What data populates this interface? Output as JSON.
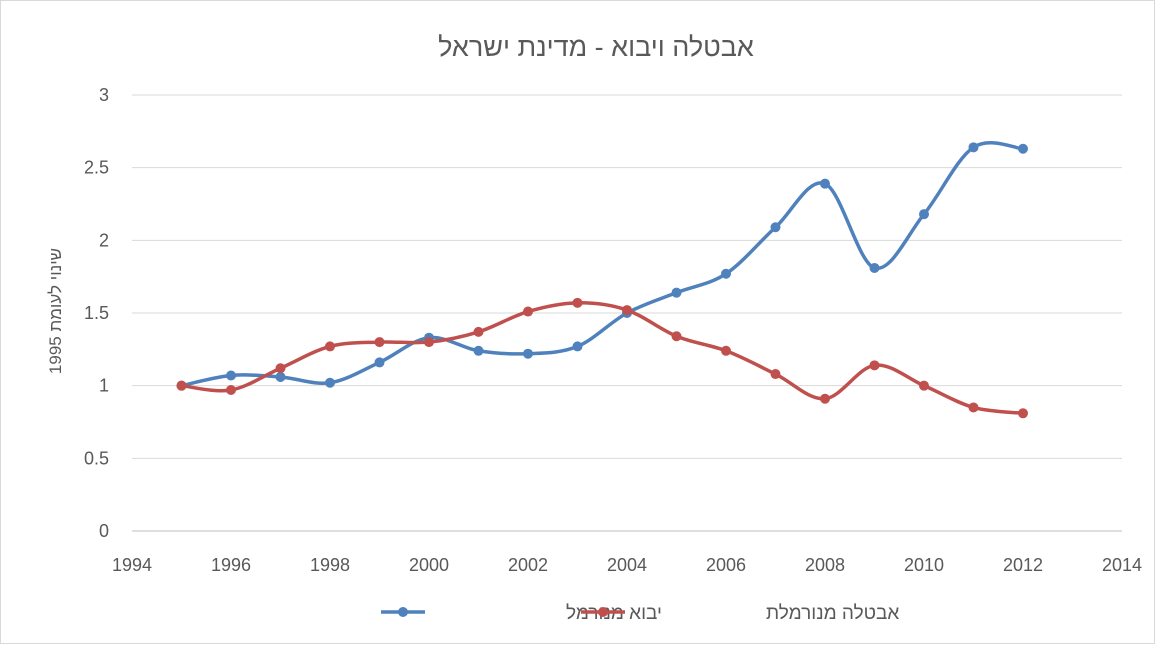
{
  "chart_data": {
    "type": "line",
    "title": "אבטלה ויבוא - מדינת ישראל",
    "xlabel": "",
    "ylabel": "שינוי לעומת 1995",
    "xlim": [
      1994,
      2014
    ],
    "ylim": [
      0,
      3
    ],
    "x_ticks": [
      1994,
      1996,
      1998,
      2000,
      2002,
      2004,
      2006,
      2008,
      2010,
      2012,
      2014
    ],
    "y_ticks": [
      0,
      0.5,
      1,
      1.5,
      2,
      2.5,
      3
    ],
    "grid": true,
    "smooth": true,
    "legend_position": "bottom",
    "x": [
      1995,
      1996,
      1997,
      1998,
      1999,
      2000,
      2001,
      2002,
      2003,
      2004,
      2005,
      2006,
      2007,
      2008,
      2009,
      2010,
      2011,
      2012
    ],
    "series": [
      {
        "name": "יבוא מנורמל",
        "color": "#4f81bd",
        "values": [
          1.0,
          1.07,
          1.06,
          1.02,
          1.16,
          1.33,
          1.24,
          1.22,
          1.27,
          1.5,
          1.64,
          1.77,
          2.09,
          2.39,
          1.81,
          2.18,
          2.64,
          2.63
        ]
      },
      {
        "name": "אבטלה מנורמלת",
        "color": "#c0504d",
        "values": [
          1.0,
          0.97,
          1.12,
          1.27,
          1.3,
          1.3,
          1.37,
          1.51,
          1.57,
          1.52,
          1.34,
          1.24,
          1.08,
          0.91,
          1.14,
          1.0,
          0.85,
          0.81
        ]
      }
    ]
  }
}
